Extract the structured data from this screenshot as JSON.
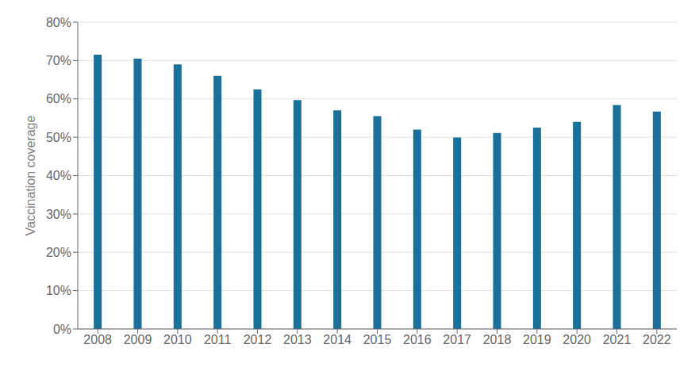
{
  "chart_data": {
    "type": "bar",
    "ylabel": "Vaccination coverage",
    "categories": [
      "2008",
      "2009",
      "2010",
      "2011",
      "2012",
      "2013",
      "2014",
      "2015",
      "2016",
      "2017",
      "2018",
      "2019",
      "2020",
      "2021",
      "2022"
    ],
    "values": [
      0.715,
      0.705,
      0.69,
      0.66,
      0.625,
      0.597,
      0.57,
      0.555,
      0.52,
      0.499,
      0.511,
      0.525,
      0.54,
      0.584,
      0.567
    ],
    "color": "#1a7099",
    "ylim": [
      0,
      0.8
    ],
    "yticks": [
      {
        "value": 0.0,
        "label": "0%"
      },
      {
        "value": 0.1,
        "label": "10%"
      },
      {
        "value": 0.2,
        "label": "20%"
      },
      {
        "value": 0.3,
        "label": "30%"
      },
      {
        "value": 0.4,
        "label": "40%"
      },
      {
        "value": 0.5,
        "label": "50%"
      },
      {
        "value": 0.6,
        "label": "60%"
      },
      {
        "value": 0.7,
        "label": "70%"
      },
      {
        "value": 0.8,
        "label": "80%"
      }
    ],
    "grid": true
  }
}
